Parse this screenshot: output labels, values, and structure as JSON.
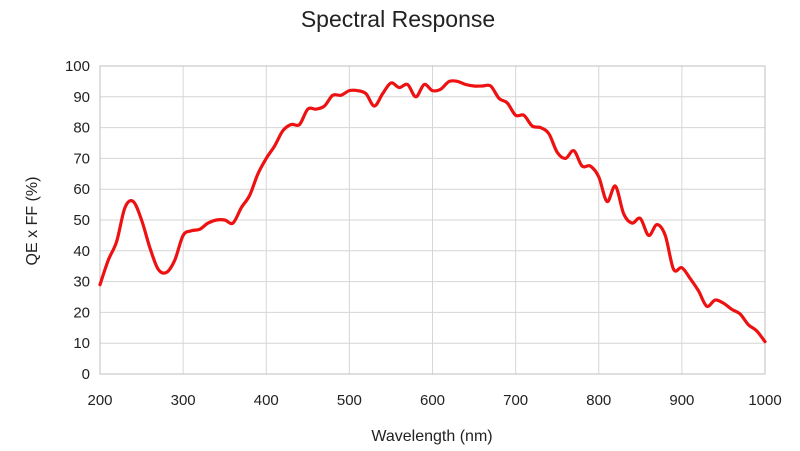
{
  "chart_data": {
    "type": "line",
    "title": "Spectral Response",
    "xlabel": "Wavelength (nm)",
    "ylabel": "QE x FF (%)",
    "xlim": [
      200,
      1000
    ],
    "ylim": [
      0,
      100
    ],
    "xticks": [
      200,
      300,
      400,
      500,
      600,
      700,
      800,
      900,
      1000
    ],
    "yticks": [
      0,
      10,
      20,
      30,
      40,
      50,
      60,
      70,
      80,
      90,
      100
    ],
    "grid": true,
    "legend": "none",
    "series": [
      {
        "color": "#ee1111",
        "x": [
          200,
          210,
          220,
          230,
          240,
          250,
          260,
          270,
          280,
          290,
          300,
          310,
          320,
          330,
          340,
          350,
          360,
          370,
          380,
          390,
          400,
          410,
          420,
          430,
          440,
          450,
          460,
          470,
          480,
          490,
          500,
          510,
          520,
          530,
          540,
          550,
          560,
          570,
          580,
          590,
          600,
          610,
          620,
          630,
          640,
          650,
          660,
          670,
          680,
          690,
          700,
          710,
          720,
          730,
          740,
          750,
          760,
          770,
          780,
          790,
          800,
          810,
          820,
          830,
          840,
          850,
          860,
          870,
          880,
          890,
          900,
          910,
          920,
          930,
          940,
          950,
          960,
          970,
          980,
          990,
          1000
        ],
        "y": [
          29,
          37,
          43,
          54,
          56,
          50,
          41,
          34,
          33,
          37,
          45,
          46.5,
          47,
          49,
          50,
          50,
          49,
          54,
          58,
          65,
          70,
          74,
          79,
          81,
          81,
          86,
          86,
          87,
          90.5,
          90.5,
          92,
          92,
          91,
          87,
          91,
          94.5,
          93,
          94,
          90,
          94,
          92,
          92.5,
          95,
          95,
          94,
          93.5,
          93.5,
          93.5,
          89.5,
          88,
          84,
          84,
          80.5,
          80,
          78,
          72,
          70,
          72.5,
          67.5,
          67.5,
          64,
          56,
          61,
          52,
          49,
          50.5,
          45,
          48.5,
          45,
          34,
          34.5,
          31,
          27,
          22,
          24,
          23,
          21,
          19.5,
          16,
          14,
          10.5
        ]
      }
    ]
  }
}
